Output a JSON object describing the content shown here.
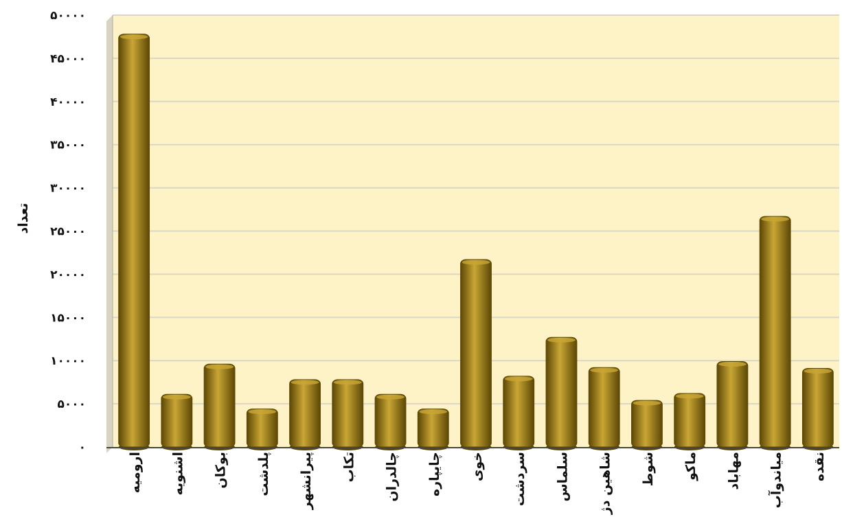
{
  "chart_data": {
    "type": "bar",
    "title": "",
    "xlabel": "",
    "ylabel": "تعداد",
    "ylim": [
      0,
      50000
    ],
    "yticks": [
      0,
      5000,
      10000,
      15000,
      20000,
      25000,
      30000,
      35000,
      40000,
      45000,
      50000
    ],
    "ytick_labels": [
      "۰",
      "۵۰۰۰",
      "۱۰۰۰۰",
      "۱۵۰۰۰",
      "۲۰۰۰۰",
      "۲۵۰۰۰",
      "۳۰۰۰۰",
      "۳۵۰۰۰",
      "۴۰۰۰۰",
      "۴۵۰۰۰",
      "۵۰۰۰۰"
    ],
    "grid": true,
    "categories": [
      "ارومیه",
      "اشنویه",
      "بوکان",
      "پلدشت",
      "پیرانشهر",
      "تکاب",
      "چالدران",
      "چایپاره",
      "خوی",
      "سردشت",
      "سلماس",
      "شاهین دژ",
      "شوط",
      "ماکو",
      "مهاباد",
      "میاندوآب",
      "نقده"
    ],
    "values": [
      47800,
      6100,
      9600,
      4400,
      7800,
      7800,
      6100,
      4400,
      21700,
      8200,
      12700,
      9200,
      5400,
      6200,
      9900,
      26700,
      9100
    ],
    "colors": {
      "bar": "#8a6d0b",
      "bar_dark": "#5c4705",
      "bar_light": "#c9a634",
      "plot_bg": "#fdf3c6",
      "grid": "#dcd7c4"
    }
  }
}
